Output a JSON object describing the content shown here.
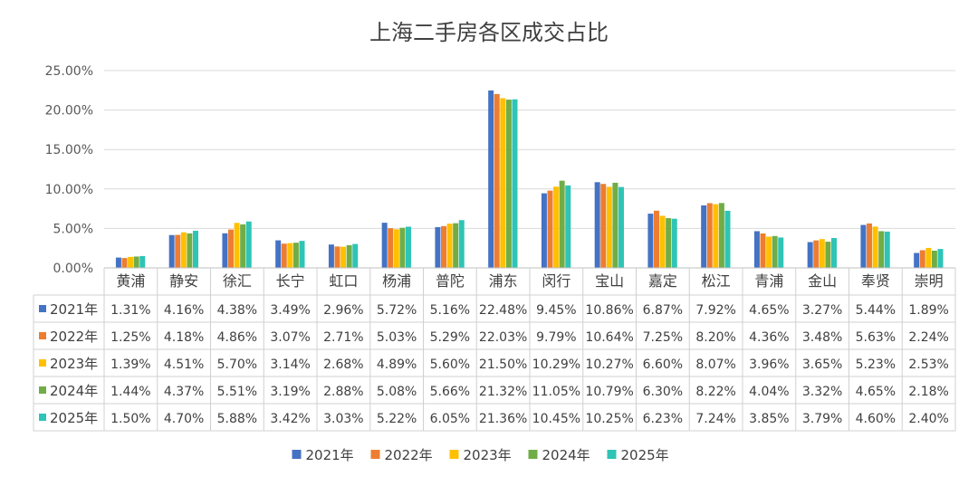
{
  "chart_data": {
    "type": "bar",
    "title": "上海二手房各区成交占比",
    "categories": [
      "黄浦",
      "静安",
      "徐汇",
      "长宁",
      "虹口",
      "杨浦",
      "普陀",
      "浦东",
      "闵行",
      "宝山",
      "嘉定",
      "松江",
      "青浦",
      "金山",
      "奉贤",
      "崇明"
    ],
    "yticks": [
      "0.00%",
      "5.00%",
      "10.00%",
      "15.00%",
      "20.00%",
      "25.00%"
    ],
    "ylim": [
      0,
      25
    ],
    "grid": true,
    "legend_position": "bottom",
    "data_table": true,
    "series": [
      {
        "name": "2021年",
        "color": "#4472C4",
        "values": [
          1.31,
          4.16,
          4.38,
          3.49,
          2.96,
          5.72,
          5.16,
          22.48,
          9.45,
          10.86,
          6.87,
          7.92,
          4.65,
          3.27,
          5.44,
          1.89
        ],
        "labels": [
          "1.31%",
          "4.16%",
          "4.38%",
          "3.49%",
          "2.96%",
          "5.72%",
          "5.16%",
          "22.48%",
          "9.45%",
          "10.86%",
          "6.87%",
          "7.92%",
          "4.65%",
          "3.27%",
          "5.44%",
          "1.89%"
        ]
      },
      {
        "name": "2022年",
        "color": "#ED7D31",
        "values": [
          1.25,
          4.18,
          4.86,
          3.07,
          2.71,
          5.03,
          5.29,
          22.03,
          9.79,
          10.64,
          7.25,
          8.2,
          4.36,
          3.48,
          5.63,
          2.24
        ],
        "labels": [
          "1.25%",
          "4.18%",
          "4.86%",
          "3.07%",
          "2.71%",
          "5.03%",
          "5.29%",
          "22.03%",
          "9.79%",
          "10.64%",
          "7.25%",
          "8.20%",
          "4.36%",
          "3.48%",
          "5.63%",
          "2.24%"
        ]
      },
      {
        "name": "2023年",
        "color": "#FFC000",
        "values": [
          1.39,
          4.51,
          5.7,
          3.14,
          2.68,
          4.89,
          5.6,
          21.5,
          10.29,
          10.27,
          6.6,
          8.07,
          3.96,
          3.65,
          5.23,
          2.53
        ],
        "labels": [
          "1.39%",
          "4.51%",
          "5.70%",
          "3.14%",
          "2.68%",
          "4.89%",
          "5.60%",
          "21.50%",
          "10.29%",
          "10.27%",
          "6.60%",
          "8.07%",
          "3.96%",
          "3.65%",
          "5.23%",
          "2.53%"
        ]
      },
      {
        "name": "2024年",
        "color": "#70AD47",
        "values": [
          1.44,
          4.37,
          5.51,
          3.19,
          2.88,
          5.08,
          5.66,
          21.32,
          11.05,
          10.79,
          6.3,
          8.22,
          4.04,
          3.32,
          4.65,
          2.18
        ],
        "labels": [
          "1.44%",
          "4.37%",
          "5.51%",
          "3.19%",
          "2.88%",
          "5.08%",
          "5.66%",
          "21.32%",
          "11.05%",
          "10.79%",
          "6.30%",
          "8.22%",
          "4.04%",
          "3.32%",
          "4.65%",
          "2.18%"
        ]
      },
      {
        "name": "2025年",
        "color": "#2EC4B6",
        "values": [
          1.5,
          4.7,
          5.88,
          3.42,
          3.03,
          5.22,
          6.05,
          21.36,
          10.45,
          10.25,
          6.23,
          7.24,
          3.85,
          3.79,
          4.6,
          2.4
        ],
        "labels": [
          "1.50%",
          "4.70%",
          "5.88%",
          "3.42%",
          "3.03%",
          "5.22%",
          "6.05%",
          "21.36%",
          "10.45%",
          "10.25%",
          "6.23%",
          "7.24%",
          "3.85%",
          "3.79%",
          "4.60%",
          "2.40%"
        ]
      }
    ]
  }
}
